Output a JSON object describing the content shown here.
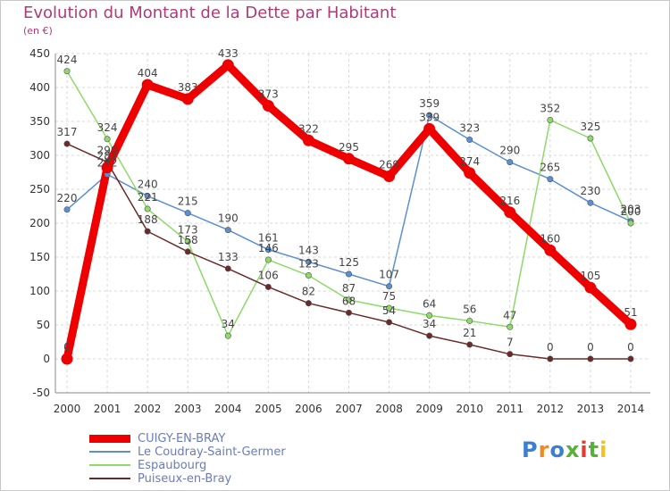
{
  "chart_data": {
    "type": "line",
    "title": "Evolution du Montant de la Dette par Habitant",
    "subtitle": "(en €)",
    "x": [
      "2000",
      "2001",
      "2002",
      "2003",
      "2004",
      "2005",
      "2006",
      "2007",
      "2008",
      "2009",
      "2010",
      "2011",
      "2012",
      "2013",
      "2014"
    ],
    "ylim": [
      -50,
      450
    ],
    "yticks": [
      -50,
      0,
      50,
      100,
      150,
      200,
      250,
      300,
      350,
      400,
      450
    ],
    "grid": true,
    "legend_position": "bottom-left",
    "series": [
      {
        "name": "CUIGY-EN-BRAY",
        "color": "#ee0000",
        "emphasis": true,
        "values": [
          0,
          282,
          404,
          383,
          433,
          373,
          322,
          295,
          269,
          339,
          274,
          216,
          160,
          105,
          51
        ]
      },
      {
        "name": "Le Coudray-Saint-Germer",
        "color": "#5b8fd1",
        "emphasis": false,
        "values": [
          220,
          272,
          240,
          215,
          190,
          161,
          143,
          125,
          107,
          359,
          323,
          290,
          265,
          230,
          203
        ]
      },
      {
        "name": "Espaubourg",
        "color": "#8ed96a",
        "emphasis": false,
        "values": [
          424,
          324,
          221,
          173,
          34,
          146,
          123,
          87,
          75,
          64,
          56,
          47,
          352,
          325,
          200
        ]
      },
      {
        "name": "Puiseux-en-Bray",
        "color": "#6b2a2a",
        "emphasis": false,
        "values": [
          317,
          290,
          188,
          158,
          133,
          106,
          82,
          68,
          54,
          34,
          21,
          7,
          0,
          0,
          0
        ]
      }
    ]
  },
  "logo": {
    "text": "Proxiti"
  }
}
